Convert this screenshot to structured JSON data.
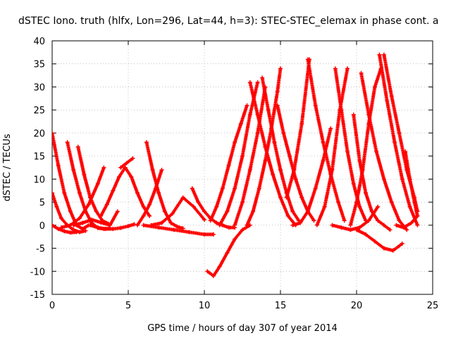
{
  "chart_data": {
    "type": "scatter",
    "title": "dSTEC Iono. truth (hlfx, Lon=296, Lat=44, h=3): STEC-STEC_elemax in phase cont. a",
    "xlabel": "GPS time / hours of day 307 of year 2014",
    "ylabel": "dSTEC  / TECUs",
    "xlim": [
      0,
      25
    ],
    "ylim": [
      -15,
      40
    ],
    "xticks": [
      0,
      5,
      10,
      15,
      20,
      25
    ],
    "yticks": [
      -15,
      -10,
      -5,
      0,
      5,
      10,
      15,
      20,
      25,
      30,
      35,
      40
    ],
    "grid": true,
    "marker": "+",
    "color": "#ff0000",
    "series": [
      {
        "x": [
          0.0,
          0.4,
          0.8,
          1.2,
          1.6,
          2.0,
          2.4
        ],
        "y": [
          20,
          13,
          7,
          3,
          0,
          -0.8,
          0
        ]
      },
      {
        "x": [
          0.0,
          0.3,
          0.6,
          1.0,
          1.4,
          1.8,
          2.2
        ],
        "y": [
          7,
          4,
          1.5,
          0,
          -1,
          -1.5,
          -1.2
        ]
      },
      {
        "x": [
          0.0,
          0.4,
          0.8,
          1.2,
          1.6
        ],
        "y": [
          0,
          -0.8,
          -1.3,
          -1.6,
          -1.5
        ]
      },
      {
        "x": [
          1.0,
          1.4,
          1.8,
          2.2,
          2.6,
          3.0,
          3.4,
          3.8
        ],
        "y": [
          18,
          12,
          7,
          3,
          0.5,
          -0.6,
          -0.8,
          -0.7
        ]
      },
      {
        "x": [
          1.7,
          2.1,
          2.5,
          2.9,
          3.3,
          3.7
        ],
        "y": [
          17,
          11,
          6,
          3,
          1,
          0.3
        ]
      },
      {
        "x": [
          0.6,
          1.2,
          1.8,
          2.4,
          3.0,
          3.4
        ],
        "y": [
          -0.5,
          0,
          1.5,
          4.5,
          9,
          12.5
        ]
      },
      {
        "x": [
          2.5,
          3.0,
          3.5,
          4.0,
          4.5,
          5.0,
          5.4
        ],
        "y": [
          0,
          -0.5,
          -0.8,
          -0.8,
          -0.6,
          -0.2,
          0.2
        ]
      },
      {
        "x": [
          1.4,
          2.0,
          2.6,
          3.2,
          3.8,
          4.3
        ],
        "y": [
          0,
          0.5,
          1.2,
          0.6,
          0,
          3
        ]
      },
      {
        "x": [
          3.2,
          3.6,
          4.0,
          4.4,
          4.8,
          5.2,
          5.6,
          6.0,
          6.4
        ],
        "y": [
          2,
          4.5,
          7.5,
          10.5,
          12.5,
          10.5,
          7,
          4,
          2
        ]
      },
      {
        "x": [
          4.5,
          4.9,
          5.3
        ],
        "y": [
          12.5,
          13.5,
          14.5
        ]
      },
      {
        "x": [
          6.2,
          6.6,
          7.0,
          7.4,
          7.8,
          8.2,
          8.6
        ],
        "y": [
          18,
          12,
          7,
          3,
          0.5,
          -0.3,
          -0.7
        ]
      },
      {
        "x": [
          5.6,
          6.0,
          6.4,
          6.8,
          7.2
        ],
        "y": [
          0,
          2,
          4.5,
          8,
          12
        ]
      },
      {
        "x": [
          6.5,
          7.2,
          7.9,
          8.6,
          9.3,
          10.0
        ],
        "y": [
          0,
          0.5,
          2.5,
          6,
          4,
          1.2
        ]
      },
      {
        "x": [
          9.2,
          9.6,
          10.0,
          10.4,
          10.8,
          11.2,
          11.6,
          12.0
        ],
        "y": [
          8,
          5,
          3,
          1.5,
          0.5,
          0,
          -0.5,
          -0.5
        ]
      },
      {
        "x": [
          6.0,
          7.0,
          8.0,
          9.0,
          10.0,
          10.6
        ],
        "y": [
          0,
          -0.5,
          -1,
          -1.5,
          -2,
          -2
        ]
      },
      {
        "x": [
          10.2,
          10.6,
          11.0,
          11.5,
          12.0,
          12.5,
          13.0
        ],
        "y": [
          -10,
          -11,
          -9,
          -6,
          -3,
          -1,
          0
        ]
      },
      {
        "x": [
          10.4,
          10.8,
          11.2,
          11.6,
          12.0,
          12.4,
          12.8
        ],
        "y": [
          1,
          4,
          8,
          13,
          18,
          22,
          26
        ]
      },
      {
        "x": [
          11.0,
          11.5,
          12.0,
          12.5,
          13.0,
          13.5
        ],
        "y": [
          0,
          3,
          8,
          15,
          24,
          31
        ]
      },
      {
        "x": [
          12.0,
          12.5,
          13.0,
          13.5,
          14.0
        ],
        "y": [
          0,
          5,
          12,
          20,
          30
        ]
      },
      {
        "x": [
          12.8,
          13.2,
          13.6,
          14.0,
          14.4,
          14.8,
          15.0
        ],
        "y": [
          0,
          3,
          8,
          14,
          21,
          29,
          34
        ]
      },
      {
        "x": [
          13.0,
          13.5,
          14.0,
          14.5,
          15.0,
          15.5,
          16.0
        ],
        "y": [
          31,
          24,
          17,
          11,
          6,
          2,
          0
        ]
      },
      {
        "x": [
          13.8,
          14.2,
          14.6,
          15.0,
          15.4,
          15.8,
          16.2
        ],
        "y": [
          32,
          25,
          18,
          12,
          7,
          3,
          1
        ]
      },
      {
        "x": [
          14.8,
          15.2,
          15.6,
          16.0,
          16.4,
          16.8,
          17.2
        ],
        "y": [
          26,
          20,
          15,
          10,
          6,
          3,
          1
        ]
      },
      {
        "x": [
          15.4,
          15.9,
          16.4,
          16.9
        ],
        "y": [
          6,
          12,
          22,
          36
        ]
      },
      {
        "x": [
          16.8,
          17.3,
          17.8,
          18.3,
          18.8,
          19.2
        ],
        "y": [
          36,
          26,
          18,
          11,
          5,
          1
        ]
      },
      {
        "x": [
          15.8,
          16.3,
          16.8,
          17.3,
          17.8,
          18.3
        ],
        "y": [
          0,
          0.5,
          3,
          8,
          14,
          21
        ]
      },
      {
        "x": [
          17.4,
          17.9,
          18.4,
          18.9,
          19.4
        ],
        "y": [
          0,
          4,
          12,
          25,
          34
        ]
      },
      {
        "x": [
          18.6,
          19.0,
          19.4,
          19.8,
          20.2,
          20.6
        ],
        "y": [
          34,
          25,
          16,
          9,
          4,
          1
        ]
      },
      {
        "x": [
          18.4,
          19.0,
          19.6,
          20.2,
          20.8,
          21.4
        ],
        "y": [
          0,
          -0.5,
          -1,
          -0.5,
          1,
          4
        ]
      },
      {
        "x": [
          19.8,
          20.2,
          20.6,
          21.0,
          21.4,
          21.8,
          22.2
        ],
        "y": [
          24,
          14,
          7,
          3,
          1,
          0,
          -1
        ]
      },
      {
        "x": [
          19.6,
          20.0,
          20.4,
          20.8,
          21.2,
          21.6
        ],
        "y": [
          0,
          5,
          12,
          22,
          30,
          34
        ]
      },
      {
        "x": [
          20.3,
          20.8,
          21.3,
          21.8,
          22.3,
          22.8,
          23.3
        ],
        "y": [
          33,
          24,
          16,
          10,
          5,
          1,
          -1
        ]
      },
      {
        "x": [
          21.5,
          22.0,
          22.5,
          23.0,
          23.5,
          24.0
        ],
        "y": [
          37,
          27,
          18,
          10,
          4,
          0
        ]
      },
      {
        "x": [
          21.8,
          22.3,
          22.8,
          23.3,
          23.8,
          24.0
        ],
        "y": [
          37,
          28,
          20,
          12,
          6,
          3
        ]
      },
      {
        "x": [
          20.0,
          20.6,
          21.2,
          21.8,
          22.4,
          23.0
        ],
        "y": [
          -1,
          -2,
          -3.5,
          -5,
          -5.5,
          -4
        ]
      },
      {
        "x": [
          23.2,
          23.5,
          23.8,
          24.0
        ],
        "y": [
          16,
          10,
          5,
          2
        ]
      },
      {
        "x": [
          22.6,
          23.1,
          23.6,
          24.0
        ],
        "y": [
          0,
          -0.5,
          0.5,
          2
        ]
      }
    ]
  }
}
